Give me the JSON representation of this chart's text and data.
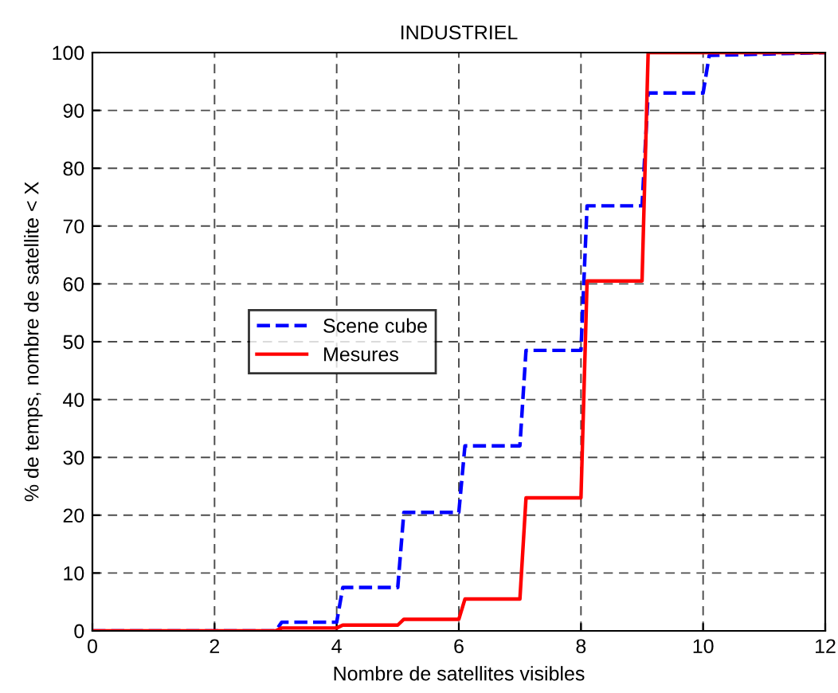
{
  "chart_data": {
    "type": "line",
    "title": "INDUSTRIEL",
    "xlabel": "Nombre de satellites visibles",
    "ylabel": "% de temps, nombre de satellite < X",
    "x": [
      0,
      3,
      3.1,
      4,
      4.1,
      5,
      5.1,
      6,
      6.1,
      7,
      7.1,
      8,
      8.1,
      9,
      9.1,
      10,
      10.1,
      12
    ],
    "series": [
      {
        "name": "Scene cube",
        "color": "#0000ff",
        "line_style": "dashed",
        "values": [
          0,
          0,
          1.5,
          1.5,
          7.5,
          7.5,
          20.5,
          20.5,
          32,
          32,
          48.5,
          48.5,
          73.5,
          73.5,
          93,
          93,
          99.5,
          100
        ]
      },
      {
        "name": "Mesures",
        "color": "#ff0000",
        "line_style": "solid",
        "values": [
          0,
          0,
          0.5,
          0.5,
          1,
          1,
          2,
          2,
          5.5,
          5.5,
          23,
          23,
          60.5,
          60.5,
          100,
          100,
          100,
          100
        ]
      }
    ],
    "xlim": [
      0,
      12
    ],
    "xticks": [
      0,
      2,
      4,
      6,
      8,
      10,
      12
    ],
    "ylim": [
      0,
      100
    ],
    "yticks": [
      0,
      10,
      20,
      30,
      40,
      50,
      60,
      70,
      80,
      90,
      100
    ],
    "grid": true,
    "legend": "center left",
    "marker": "none"
  }
}
